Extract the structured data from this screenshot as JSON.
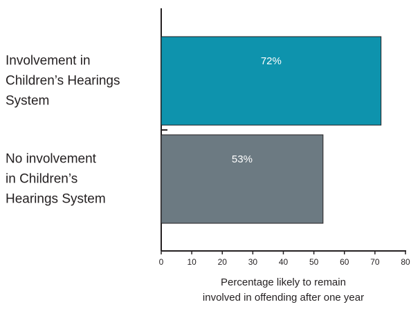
{
  "chart_data": {
    "type": "bar",
    "orientation": "horizontal",
    "categories": [
      "Involvement in\nChildren’s Hearings\nSystem",
      "No involvement\nin Children’s\nHearings System"
    ],
    "values": [
      72,
      53
    ],
    "value_labels": [
      "72%",
      "53%"
    ],
    "colors": [
      "#0e93ad",
      "#6c7a82"
    ],
    "xlabel": "Percentage likely to remain\ninvolved in offending after one year",
    "xlim": [
      0,
      80
    ],
    "xticks": [
      0,
      10,
      20,
      30,
      40,
      50,
      60,
      70,
      80
    ],
    "grid": false
  }
}
